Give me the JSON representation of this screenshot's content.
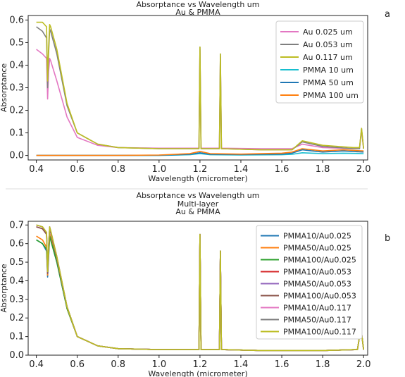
{
  "panel_labels": [
    "a",
    "b"
  ],
  "chart_data": [
    {
      "type": "line",
      "title_lines": [
        "Absorptance vs Wavelength um",
        "Au & PMMA"
      ],
      "xlabel": "Wavelength (micrometer)",
      "ylabel": "Absorptance",
      "xlim": [
        0.36,
        2.02
      ],
      "ylim": [
        -0.02,
        0.62
      ],
      "xticks": [
        "0.4",
        "0.6",
        "0.8",
        "1.0",
        "1.2",
        "1.4",
        "1.6",
        "1.8",
        "2.0"
      ],
      "yticks": [
        "0.0",
        "0.1",
        "0.2",
        "0.3",
        "0.4",
        "0.5",
        "0.6"
      ],
      "legend_position": "upper-right",
      "series": [
        {
          "name": "Au 0.025 um",
          "color": "#e377c2",
          "x": [
            0.4,
            0.43,
            0.45,
            0.455,
            0.46,
            0.465,
            0.47,
            0.5,
            0.55,
            0.6,
            0.7,
            0.8,
            1.0,
            1.195,
            1.2,
            1.205,
            1.295,
            1.3,
            1.305,
            1.5,
            1.65,
            1.7,
            1.8,
            1.95,
            1.98,
            1.99,
            2.0
          ],
          "y": [
            0.47,
            0.45,
            0.43,
            0.25,
            0.37,
            0.43,
            0.42,
            0.33,
            0.17,
            0.08,
            0.045,
            0.035,
            0.032,
            0.032,
            0.47,
            0.032,
            0.032,
            0.44,
            0.032,
            0.03,
            0.03,
            0.05,
            0.035,
            0.03,
            0.03,
            0.11,
            0.03
          ]
        },
        {
          "name": "Au 0.053 um",
          "color": "#7f7f7f",
          "x": [
            0.4,
            0.43,
            0.45,
            0.455,
            0.46,
            0.465,
            0.47,
            0.5,
            0.55,
            0.6,
            0.7,
            0.8,
            1.0,
            1.195,
            1.2,
            1.205,
            1.295,
            1.3,
            1.305,
            1.5,
            1.65,
            1.7,
            1.8,
            1.95,
            1.98,
            1.99,
            2.0
          ],
          "y": [
            0.57,
            0.55,
            0.52,
            0.3,
            0.45,
            0.56,
            0.55,
            0.45,
            0.22,
            0.1,
            0.05,
            0.035,
            0.03,
            0.03,
            0.48,
            0.03,
            0.03,
            0.45,
            0.03,
            0.025,
            0.025,
            0.06,
            0.04,
            0.03,
            0.03,
            0.12,
            0.03
          ]
        },
        {
          "name": "Au 0.117 um",
          "color": "#bcbd22",
          "x": [
            0.4,
            0.43,
            0.45,
            0.455,
            0.46,
            0.465,
            0.47,
            0.5,
            0.55,
            0.6,
            0.7,
            0.8,
            1.0,
            1.195,
            1.2,
            1.205,
            1.295,
            1.3,
            1.305,
            1.5,
            1.65,
            1.7,
            1.8,
            1.95,
            1.98,
            1.99,
            2.0
          ],
          "y": [
            0.59,
            0.59,
            0.57,
            0.33,
            0.48,
            0.58,
            0.57,
            0.47,
            0.23,
            0.1,
            0.05,
            0.035,
            0.03,
            0.03,
            0.48,
            0.03,
            0.03,
            0.45,
            0.03,
            0.025,
            0.025,
            0.065,
            0.045,
            0.035,
            0.035,
            0.12,
            0.03
          ]
        },
        {
          "name": "PMMA 10 um",
          "color": "#17becf",
          "x": [
            0.4,
            0.8,
            1.0,
            1.15,
            1.2,
            1.25,
            1.4,
            1.6,
            1.65,
            1.7,
            1.8,
            1.9,
            2.0
          ],
          "y": [
            0.0,
            0.0,
            0.0,
            0.003,
            0.008,
            0.003,
            0.002,
            0.003,
            0.005,
            0.012,
            0.008,
            0.01,
            0.008
          ]
        },
        {
          "name": "PMMA 50 um",
          "color": "#1f77b4",
          "x": [
            0.4,
            0.8,
            1.0,
            1.15,
            1.2,
            1.25,
            1.4,
            1.6,
            1.65,
            1.7,
            1.8,
            1.9,
            2.0
          ],
          "y": [
            0.0,
            0.0,
            0.001,
            0.005,
            0.012,
            0.005,
            0.004,
            0.006,
            0.01,
            0.025,
            0.015,
            0.02,
            0.015
          ]
        },
        {
          "name": "PMMA 100 um",
          "color": "#ff7f0e",
          "x": [
            0.4,
            0.8,
            1.0,
            1.15,
            1.2,
            1.25,
            1.4,
            1.6,
            1.65,
            1.7,
            1.8,
            1.9,
            2.0
          ],
          "y": [
            0.0,
            0.0,
            0.002,
            0.008,
            0.018,
            0.008,
            0.006,
            0.01,
            0.015,
            0.03,
            0.02,
            0.025,
            0.02
          ]
        }
      ]
    },
    {
      "type": "line",
      "title_lines": [
        "Absorptance vs Wavelength um",
        "Multi-layer",
        "Au & PMMA"
      ],
      "xlabel": "Wavelength (micrometer)",
      "ylabel": "Absorptance",
      "xlim": [
        0.36,
        2.02
      ],
      "ylim": [
        0.0,
        0.72
      ],
      "xticks": [
        "0.4",
        "0.6",
        "0.8",
        "1.0",
        "1.2",
        "1.4",
        "1.6",
        "1.8",
        "2.0"
      ],
      "yticks": [
        "0.0",
        "0.1",
        "0.2",
        "0.3",
        "0.4",
        "0.5",
        "0.6",
        "0.7"
      ],
      "legend_position": "right",
      "series": [
        {
          "name": "PMMA10/Au0.025",
          "color": "#1f77b4",
          "x": [
            0.4,
            0.43,
            0.45,
            0.455,
            0.46,
            0.465,
            0.47,
            0.5,
            0.55,
            0.6,
            0.7,
            0.8,
            1.0,
            1.195,
            1.2,
            1.205,
            1.295,
            1.3,
            1.305,
            1.5,
            1.8,
            1.97,
            1.98,
            1.99,
            2.0
          ],
          "y": [
            0.62,
            0.6,
            0.56,
            0.42,
            0.52,
            0.64,
            0.62,
            0.5,
            0.25,
            0.1,
            0.05,
            0.035,
            0.03,
            0.03,
            0.65,
            0.03,
            0.03,
            0.56,
            0.03,
            0.025,
            0.025,
            0.03,
            0.1,
            0.12,
            0.03
          ]
        },
        {
          "name": "PMMA50/Au0.025",
          "color": "#ff7f0e",
          "x": [
            0.4,
            0.43,
            0.45,
            0.455,
            0.46,
            0.465,
            0.47,
            0.5,
            0.55,
            0.6,
            0.7,
            0.8,
            1.0,
            1.195,
            1.2,
            1.205,
            1.295,
            1.3,
            1.305,
            1.5,
            1.8,
            1.97,
            1.98,
            1.99,
            2.0
          ],
          "y": [
            0.64,
            0.62,
            0.58,
            0.43,
            0.54,
            0.65,
            0.63,
            0.51,
            0.25,
            0.1,
            0.05,
            0.035,
            0.03,
            0.03,
            0.65,
            0.03,
            0.03,
            0.56,
            0.03,
            0.025,
            0.025,
            0.03,
            0.1,
            0.12,
            0.03
          ]
        },
        {
          "name": "PMMA100/Au0.025",
          "color": "#2ca02c",
          "x": [
            0.4,
            0.43,
            0.45,
            0.455,
            0.46,
            0.465,
            0.47,
            0.5,
            0.55,
            0.6,
            0.7,
            0.8,
            1.0,
            1.195,
            1.2,
            1.205,
            1.295,
            1.3,
            1.305,
            1.5,
            1.8,
            1.97,
            1.98,
            1.99,
            2.0
          ],
          "y": [
            0.62,
            0.6,
            0.57,
            0.44,
            0.55,
            0.64,
            0.62,
            0.5,
            0.25,
            0.1,
            0.05,
            0.035,
            0.03,
            0.03,
            0.65,
            0.03,
            0.03,
            0.56,
            0.03,
            0.025,
            0.025,
            0.03,
            0.1,
            0.12,
            0.03
          ]
        },
        {
          "name": "PMMA10/Au0.053",
          "color": "#d62728",
          "x": [
            0.4,
            0.43,
            0.45,
            0.455,
            0.46,
            0.465,
            0.47,
            0.5,
            0.55,
            0.6,
            0.7,
            0.8,
            1.0,
            1.195,
            1.2,
            1.205,
            1.295,
            1.3,
            1.305,
            1.5,
            1.8,
            1.97,
            1.98,
            1.99,
            2.0
          ],
          "y": [
            0.69,
            0.68,
            0.65,
            0.44,
            0.58,
            0.68,
            0.66,
            0.52,
            0.26,
            0.1,
            0.05,
            0.035,
            0.03,
            0.03,
            0.65,
            0.03,
            0.03,
            0.56,
            0.03,
            0.025,
            0.025,
            0.03,
            0.1,
            0.12,
            0.03
          ]
        },
        {
          "name": "PMMA50/Au0.053",
          "color": "#9467bd",
          "x": [
            0.4,
            0.43,
            0.45,
            0.455,
            0.46,
            0.465,
            0.47,
            0.5,
            0.55,
            0.6,
            0.7,
            0.8,
            1.0,
            1.195,
            1.2,
            1.205,
            1.295,
            1.3,
            1.305,
            1.5,
            1.8,
            1.97,
            1.98,
            1.99,
            2.0
          ],
          "y": [
            0.69,
            0.68,
            0.65,
            0.44,
            0.58,
            0.68,
            0.66,
            0.52,
            0.26,
            0.1,
            0.05,
            0.035,
            0.03,
            0.03,
            0.65,
            0.03,
            0.03,
            0.56,
            0.03,
            0.025,
            0.025,
            0.03,
            0.1,
            0.12,
            0.03
          ]
        },
        {
          "name": "PMMA100/Au0.053",
          "color": "#8c564b",
          "x": [
            0.4,
            0.43,
            0.45,
            0.455,
            0.46,
            0.465,
            0.47,
            0.5,
            0.55,
            0.6,
            0.7,
            0.8,
            1.0,
            1.195,
            1.2,
            1.205,
            1.295,
            1.3,
            1.305,
            1.5,
            1.8,
            1.97,
            1.98,
            1.99,
            2.0
          ],
          "y": [
            0.69,
            0.68,
            0.65,
            0.44,
            0.58,
            0.68,
            0.66,
            0.52,
            0.26,
            0.1,
            0.05,
            0.035,
            0.03,
            0.03,
            0.65,
            0.03,
            0.03,
            0.56,
            0.03,
            0.025,
            0.025,
            0.03,
            0.1,
            0.12,
            0.03
          ]
        },
        {
          "name": "PMMA10/Au0.117",
          "color": "#e377c2",
          "x": [
            0.4,
            0.43,
            0.45,
            0.455,
            0.46,
            0.465,
            0.47,
            0.5,
            0.55,
            0.6,
            0.7,
            0.8,
            1.0,
            1.195,
            1.2,
            1.205,
            1.295,
            1.3,
            1.305,
            1.5,
            1.8,
            1.97,
            1.98,
            1.99,
            2.0
          ],
          "y": [
            0.7,
            0.69,
            0.66,
            0.45,
            0.59,
            0.69,
            0.67,
            0.53,
            0.26,
            0.1,
            0.05,
            0.035,
            0.03,
            0.03,
            0.65,
            0.03,
            0.03,
            0.56,
            0.03,
            0.025,
            0.025,
            0.03,
            0.1,
            0.12,
            0.03
          ]
        },
        {
          "name": "PMMA50/Au0.117",
          "color": "#7f7f7f",
          "x": [
            0.4,
            0.43,
            0.45,
            0.455,
            0.46,
            0.465,
            0.47,
            0.5,
            0.55,
            0.6,
            0.7,
            0.8,
            1.0,
            1.195,
            1.2,
            1.205,
            1.295,
            1.3,
            1.305,
            1.5,
            1.8,
            1.97,
            1.98,
            1.99,
            2.0
          ],
          "y": [
            0.7,
            0.69,
            0.66,
            0.45,
            0.59,
            0.69,
            0.67,
            0.53,
            0.26,
            0.1,
            0.05,
            0.035,
            0.03,
            0.03,
            0.65,
            0.03,
            0.03,
            0.56,
            0.03,
            0.025,
            0.025,
            0.03,
            0.1,
            0.12,
            0.03
          ]
        },
        {
          "name": "PMMA100/Au0.117",
          "color": "#bcbd22",
          "x": [
            0.4,
            0.43,
            0.45,
            0.455,
            0.46,
            0.465,
            0.47,
            0.5,
            0.55,
            0.6,
            0.7,
            0.8,
            1.0,
            1.195,
            1.2,
            1.205,
            1.295,
            1.3,
            1.305,
            1.5,
            1.8,
            1.97,
            1.98,
            1.99,
            2.0
          ],
          "y": [
            0.7,
            0.69,
            0.66,
            0.45,
            0.59,
            0.69,
            0.67,
            0.53,
            0.26,
            0.1,
            0.05,
            0.035,
            0.03,
            0.03,
            0.65,
            0.03,
            0.03,
            0.56,
            0.03,
            0.025,
            0.025,
            0.03,
            0.1,
            0.12,
            0.03
          ]
        }
      ]
    }
  ]
}
